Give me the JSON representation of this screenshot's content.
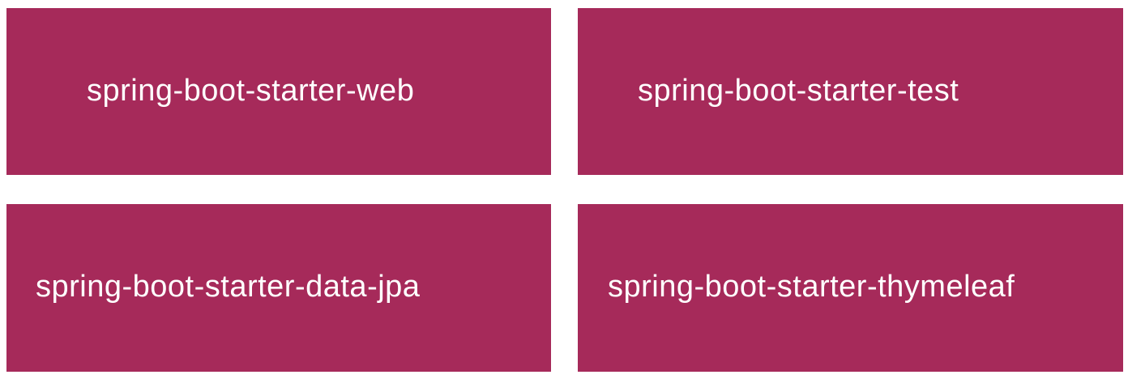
{
  "tiles": [
    {
      "label": "spring-boot-starter-web"
    },
    {
      "label": "spring-boot-starter-test"
    },
    {
      "label": "spring-boot-starter-data-jpa"
    },
    {
      "label": "spring-boot-starter-thymeleaf"
    }
  ],
  "colors": {
    "tile_background": "#a62a5a",
    "tile_text": "#ffffff",
    "page_background": "#ffffff"
  }
}
